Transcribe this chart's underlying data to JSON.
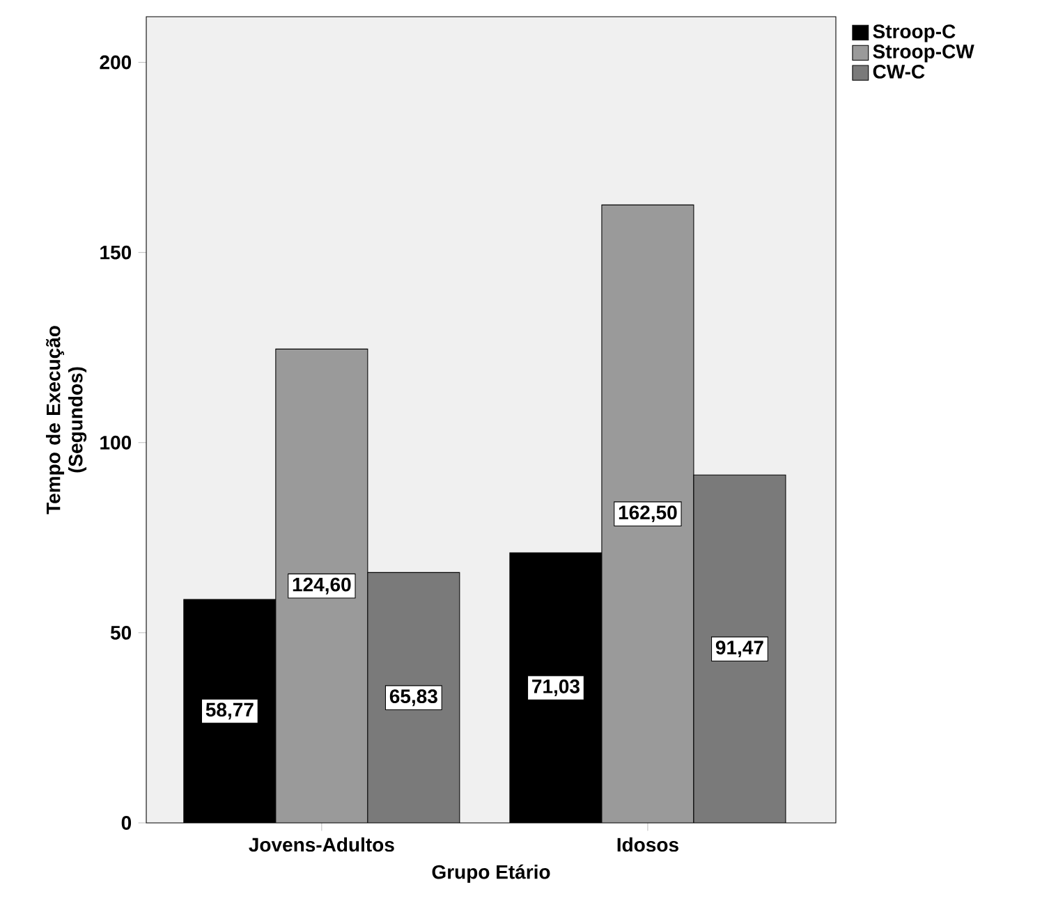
{
  "chart_data": {
    "type": "bar",
    "xlabel": "Grupo Etário",
    "ylabel": "Tempo de Execução (Segundos)",
    "categories": [
      "Jovens-Adultos",
      "Idosos"
    ],
    "series": [
      {
        "name": "Stroop-C",
        "color": "#000000",
        "values": [
          58.77,
          71.03
        ],
        "value_labels": [
          "58,77",
          "71,03"
        ]
      },
      {
        "name": "Stroop-CW",
        "color": "#9a9a9a",
        "values": [
          124.6,
          162.5
        ],
        "value_labels": [
          "124,60",
          "162,50"
        ]
      },
      {
        "name": "CW-C",
        "color": "#7a7a7a",
        "values": [
          65.83,
          91.47
        ],
        "value_labels": [
          "65,83",
          "91,47"
        ]
      }
    ],
    "ylim": [
      0,
      212
    ],
    "yticks": [
      0,
      50,
      100,
      150,
      200
    ],
    "grid": false,
    "legend": "top right"
  }
}
